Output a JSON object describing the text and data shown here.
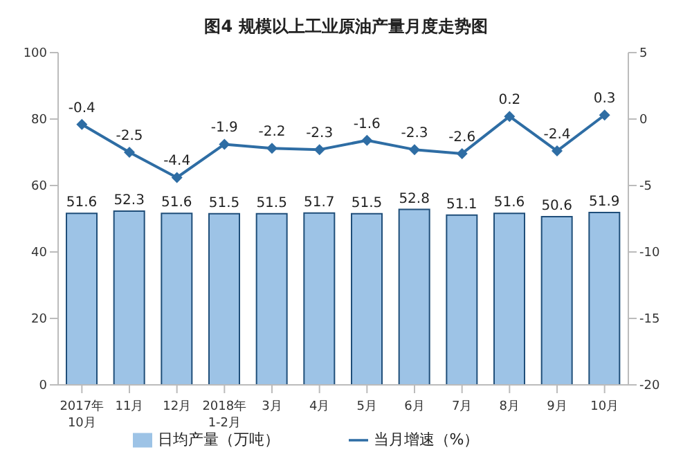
{
  "chart_data": {
    "type": "bar",
    "title": "图4 规模以上工业原油产量月度走势图",
    "categories": [
      "2017年\n10月",
      "11月",
      "12月",
      "2018年\n1-2月",
      "3月",
      "4月",
      "5月",
      "6月",
      "7月",
      "8月",
      "9月",
      "10月"
    ],
    "series": [
      {
        "name": "日均产量（万吨）",
        "color": "#9dc3e6",
        "values": [
          51.6,
          52.3,
          51.6,
          51.5,
          51.5,
          51.7,
          51.5,
          52.8,
          51.1,
          51.6,
          50.6,
          51.9
        ]
      },
      {
        "name": "当月增速（%）",
        "type": "line",
        "axis": "y2",
        "color": "#2e6da4",
        "values": [
          -0.4,
          -2.5,
          -4.4,
          -1.9,
          -2.2,
          -2.3,
          -1.6,
          -2.3,
          -2.6,
          0.2,
          -2.4,
          0.3
        ]
      }
    ],
    "ylim": [
      0,
      100
    ],
    "yticks": [
      0,
      20,
      40,
      60,
      80,
      100
    ],
    "y2lim": [
      -20,
      5
    ],
    "y2ticks": [
      -20,
      -15,
      -10,
      -5,
      0,
      5
    ],
    "data_labels": true,
    "legend": "bottom",
    "grid": false,
    "marker": "diamond"
  }
}
